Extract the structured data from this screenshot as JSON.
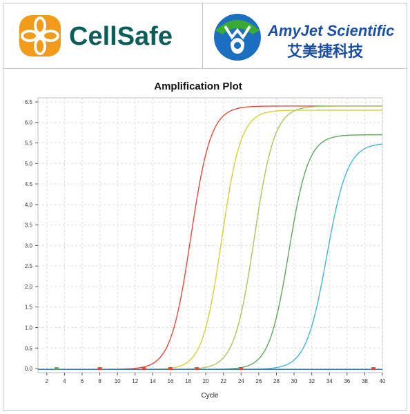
{
  "logos": {
    "left_brand": "CellSafe",
    "right_brand_en": "AmyJet Scientific",
    "right_brand_cn": "艾美捷科技",
    "left_color": "#0b5e5a",
    "right_color": "#1c4fa3",
    "accent_orange": "#f29a1a"
  },
  "chart_data": {
    "type": "line",
    "title": "Amplification Plot",
    "xlabel": "Cycle",
    "ylabel": "",
    "xlim": [
      1,
      40
    ],
    "ylim": [
      -0.1,
      6.6
    ],
    "x_ticks": [
      2,
      4,
      6,
      8,
      10,
      12,
      14,
      16,
      18,
      20,
      22,
      24,
      26,
      28,
      30,
      32,
      34,
      36,
      38,
      40
    ],
    "y_ticks": [
      0.0,
      0.5,
      1.0,
      1.5,
      2.0,
      2.5,
      3.0,
      3.5,
      4.0,
      4.5,
      5.0,
      5.5,
      6.0,
      6.5
    ],
    "y_tick_labels": [
      "0.0",
      "0.5",
      "1.0",
      "1.5",
      "2.0",
      "2.5",
      "3.0",
      "3.5",
      "4.0",
      "4.5",
      "5.0",
      "5.5",
      "6.0",
      "6.5"
    ],
    "grid": true,
    "series": [
      {
        "color": "#e8493a",
        "midpoint": 18.3,
        "plateau": 6.42,
        "slope": 0.88
      },
      {
        "color": "#d7cf3a",
        "midpoint": 21.8,
        "plateau": 6.32,
        "slope": 0.92
      },
      {
        "color": "#a5c95a",
        "midpoint": 25.5,
        "plateau": 6.42,
        "slope": 0.88
      },
      {
        "color": "#5fa65c",
        "midpoint": 29.4,
        "plateau": 5.72,
        "slope": 0.9
      },
      {
        "color": "#45b4d8",
        "midpoint": 33.7,
        "plateau": 5.52,
        "slope": 0.85
      },
      {
        "color": "#3b78b8",
        "midpoint": 99,
        "plateau": 0.0,
        "slope": 1.0
      }
    ],
    "baseline_markers": [
      {
        "x": 3.1,
        "color": "#5fa65c"
      },
      {
        "x": 8,
        "color": "#e8493a"
      },
      {
        "x": 13,
        "color": "#e8493a"
      },
      {
        "x": 16,
        "color": "#e8493a"
      },
      {
        "x": 19,
        "color": "#e8493a"
      },
      {
        "x": 24,
        "color": "#e8493a"
      },
      {
        "x": 39,
        "color": "#e8493a"
      }
    ]
  }
}
